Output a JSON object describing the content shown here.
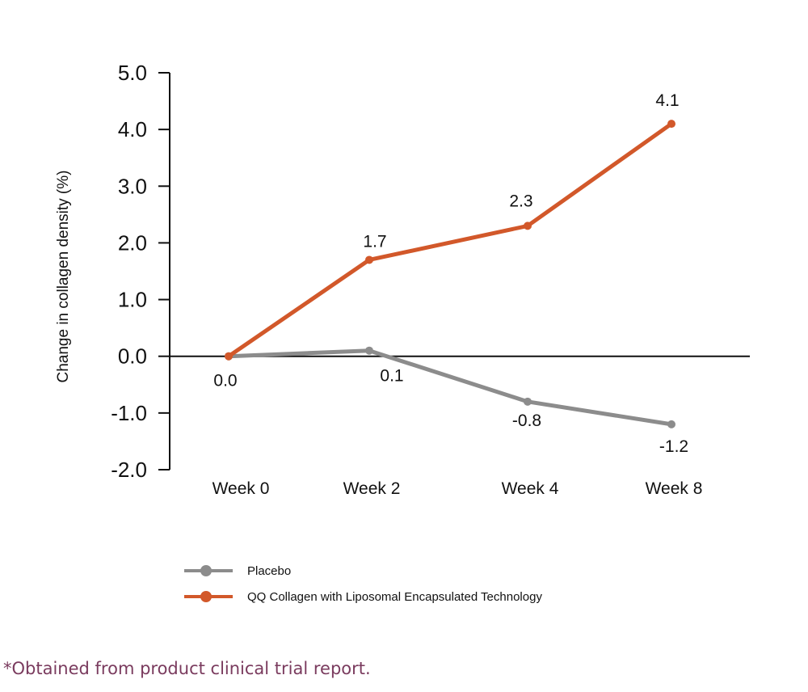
{
  "chart_data": {
    "type": "line",
    "categories": [
      "Week 0",
      "Week 2",
      "Week 4",
      "Week 8"
    ],
    "ylabel": "Change in collagen density (%)",
    "xlabel": "",
    "ylim": [
      -2.0,
      5.0
    ],
    "yticks": [
      "5.0",
      "4.0",
      "3.0",
      "2.0",
      "1.0",
      "0.0",
      "-1.0",
      "-2.0"
    ],
    "ytick_values": [
      5,
      4,
      3,
      2,
      1,
      0,
      -1,
      -2
    ],
    "grid": false,
    "legend_position": "bottom-left",
    "series": [
      {
        "name": "Placebo",
        "color": "#8c8c8c",
        "values": [
          0.0,
          0.1,
          -0.8,
          -1.2
        ],
        "labels": [
          "0.0",
          "0.1",
          "-0.8",
          "-1.2"
        ]
      },
      {
        "name": "QQ Collagen with Liposomal Encapsulated Technology",
        "color": "#d2582a",
        "values": [
          0.0,
          1.7,
          2.3,
          4.1
        ],
        "labels": [
          "",
          "1.7",
          "2.3",
          "4.1"
        ]
      }
    ]
  },
  "footnote": "*Obtained from product clinical trial report."
}
